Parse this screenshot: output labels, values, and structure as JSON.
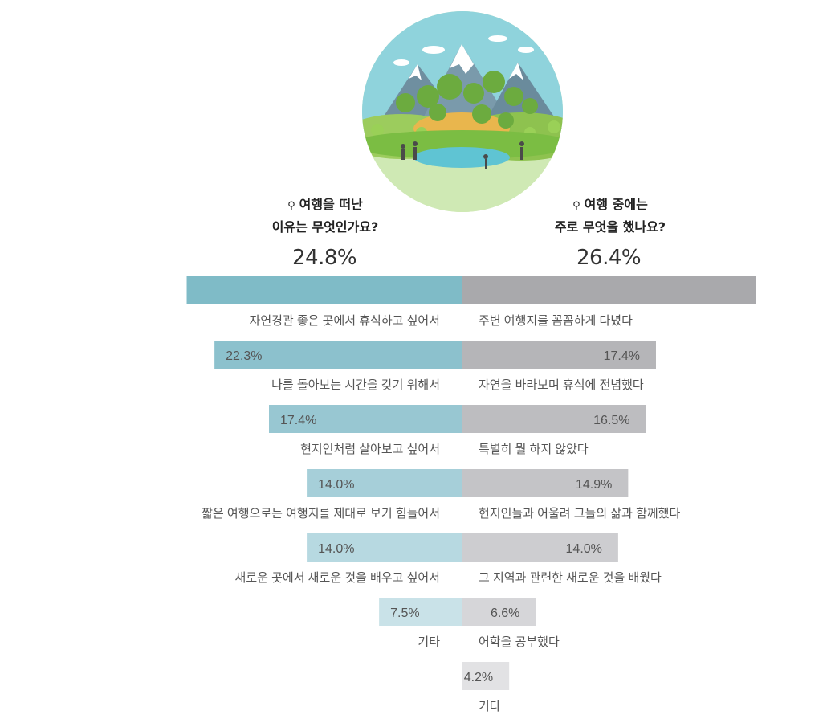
{
  "left_heading": {
    "line1": "여행을 떠난",
    "line2": "이유는 무엇인가요?"
  },
  "right_heading": {
    "line1": "여행 중에는",
    "line2": "주로 무엇을 했나요?"
  },
  "colors": {
    "left": [
      "#7fbbc7",
      "#8cc1cd",
      "#98c7d2",
      "#a6cfd9",
      "#b7d9e1",
      "#c9e2e8"
    ],
    "right": [
      "#a9a9ac",
      "#b5b5b8",
      "#bdbdc0",
      "#c4c4c7",
      "#cdcdd0",
      "#d6d6d9",
      "#e2e2e4"
    ]
  },
  "chart_data": [
    {
      "type": "bar",
      "side": "left",
      "categories": [
        "자연경관 좋은 곳에서 휴식하고 싶어서",
        "나를 돌아보는 시간을 갖기 위해서",
        "현지인처럼 살아보고 싶어서",
        "짧은 여행으로는 여행지를 제대로 보기 힘들어서",
        "새로운 곳에서 새로운 것을 배우고 싶어서",
        "기타"
      ],
      "values": [
        24.8,
        22.3,
        17.4,
        14.0,
        14.0,
        7.5
      ],
      "labels": [
        "24.8%",
        "22.3%",
        "17.4%",
        "14.0%",
        "14.0%",
        "7.5%"
      ]
    },
    {
      "type": "bar",
      "side": "right",
      "categories": [
        "주변 여행지를 꼼꼼하게 다녔다",
        "자연을 바라보며 휴식에 전념했다",
        "특별히 뭘 하지 않았다",
        "현지인들과 어울려 그들의 삶과 함께했다",
        "그 지역과 관련한 새로운 것을 배웠다",
        "어학을 공부했다",
        "기타"
      ],
      "values": [
        26.4,
        17.4,
        16.5,
        14.9,
        14.0,
        6.6,
        4.2
      ],
      "labels": [
        "26.4%",
        "17.4%",
        "16.5%",
        "14.9%",
        "14.0%",
        "6.6%",
        "4.2%"
      ]
    }
  ]
}
